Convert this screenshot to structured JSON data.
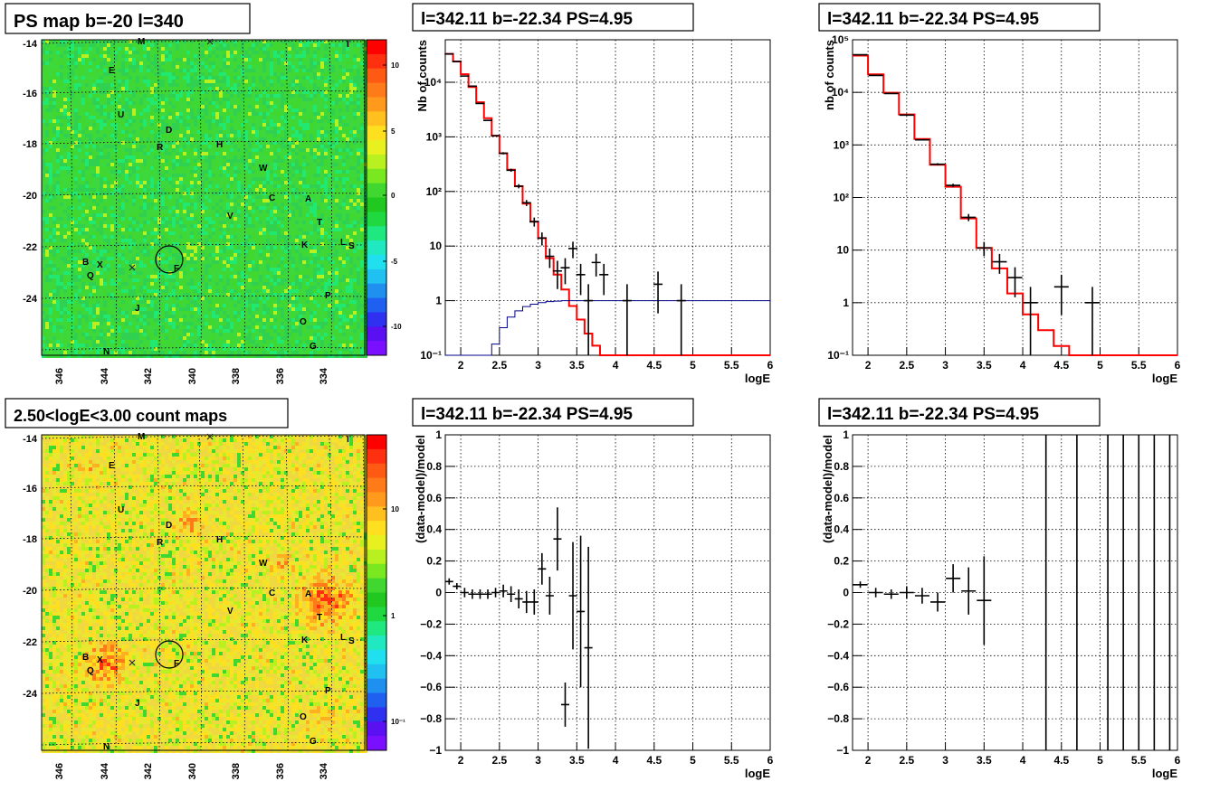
{
  "chart_data": [
    {
      "type": "heatmap",
      "title": "PS map b=-20 l=340",
      "xlabel": "",
      "ylabel": "",
      "xticks": [
        "346",
        "344",
        "342",
        "340",
        "338",
        "336",
        "334"
      ],
      "yticks": [
        "-14",
        "-16",
        "-18",
        "-20",
        "-22",
        "-24"
      ],
      "colorbar": {
        "ticks": [
          "10",
          "5",
          "0",
          "-5",
          "-10"
        ],
        "scale": "linear"
      },
      "sources": [
        "M",
        "I",
        "E",
        "U",
        "D",
        "R",
        "H",
        "W",
        "C",
        "A",
        "V",
        "T",
        "K",
        "L",
        "S",
        "B",
        "X",
        "F",
        "Q",
        "P",
        "J",
        "O",
        "N",
        "G"
      ],
      "region_circle": {
        "l": 342.11,
        "b": -22.34
      },
      "colors": {
        "background": "#3cd83c",
        "hot": "#ff2020",
        "cold": "#7a10ff"
      }
    },
    {
      "type": "line",
      "title": "l=342.11 b=-22.34 PS=4.95",
      "xlabel": "logE",
      "ylabel": "Nb of counts",
      "yscale": "log",
      "xlim": [
        1.8,
        6
      ],
      "ylim": [
        0.1,
        60000
      ],
      "xticks": [
        "2",
        "2.5",
        "3",
        "3.5",
        "4",
        "4.5",
        "5",
        "5.5",
        "6"
      ],
      "yticks": [
        "10⁻¹",
        "1",
        "10",
        "10²",
        "10³",
        "10⁴"
      ],
      "series": [
        {
          "name": "",
          "style": "step",
          "color": "#ff0000",
          "x": [
            1.8,
            1.9,
            2.0,
            2.1,
            2.2,
            2.3,
            2.4,
            2.5,
            2.6,
            2.7,
            2.8,
            2.9,
            3.0,
            3.1,
            3.2,
            3.3,
            3.4,
            3.5,
            3.6,
            3.7,
            3.8,
            3.9,
            4.0,
            4.1,
            4.2,
            4.3,
            4.4,
            4.5,
            4.6,
            4.7,
            4.8,
            4.9,
            5.0,
            5.1,
            5.2,
            5.3,
            5.4,
            5.5,
            5.6,
            5.7,
            5.8,
            5.9
          ],
          "y": [
            33000,
            24000,
            14000,
            8200,
            4300,
            2200,
            1050,
            500,
            250,
            125,
            60,
            28,
            14,
            6,
            3,
            1.6,
            0.8,
            0.45,
            0.25,
            0.15,
            0.1,
            0.1,
            0.1,
            0.1,
            0.1,
            0.1,
            0.1,
            0.1,
            0.1,
            0.1,
            0.1,
            0.1,
            0.1,
            0.1,
            0.1,
            0.1,
            0.1,
            0.1,
            0.1,
            0.1,
            0.1,
            0.1
          ]
        },
        {
          "name": "",
          "style": "step",
          "color": "#00008b",
          "x": [
            1.8,
            2.3,
            2.4,
            2.5,
            2.6,
            2.7,
            2.8,
            2.9,
            3.0,
            3.1,
            3.2,
            3.3,
            3.4,
            3.6,
            4.0,
            5.0,
            6.0
          ],
          "y": [
            0.1,
            0.1,
            0.16,
            0.32,
            0.5,
            0.65,
            0.78,
            0.86,
            0.92,
            0.96,
            0.98,
            1.0,
            1.0,
            1.0,
            1.0,
            1.0,
            1.0
          ]
        },
        {
          "name": "",
          "style": "points",
          "color": "#000000",
          "x": [
            1.85,
            1.95,
            2.05,
            2.15,
            2.25,
            2.35,
            2.45,
            2.55,
            2.65,
            2.75,
            2.85,
            2.95,
            3.05,
            3.15,
            3.25,
            3.35,
            3.45,
            3.55,
            3.65,
            3.75,
            3.85,
            4.15,
            4.55,
            4.85
          ],
          "y": [
            33000,
            24000,
            13000,
            8500,
            4100,
            2000,
            1050,
            500,
            245,
            125,
            62,
            28,
            14,
            6.5,
            3.5,
            4,
            9,
            3,
            1,
            5,
            3,
            1,
            2,
            1
          ]
        }
      ]
    },
    {
      "type": "line",
      "title": "l=342.11 b=-22.34 PS=4.95",
      "xlabel": "logE",
      "ylabel": "nb of counts",
      "yscale": "log",
      "xlim": [
        1.8,
        6
      ],
      "ylim": [
        0.1,
        100000
      ],
      "xticks": [
        "2",
        "2.5",
        "3",
        "3.5",
        "4",
        "4.5",
        "5",
        "5.5",
        "6"
      ],
      "yticks": [
        "10⁻¹",
        "1",
        "10",
        "10²",
        "10³",
        "10⁴",
        "10⁵"
      ],
      "series": [
        {
          "name": "",
          "style": "step",
          "color": "#ff0000",
          "x": [
            1.8,
            2.0,
            2.2,
            2.4,
            2.6,
            2.8,
            3.0,
            3.2,
            3.4,
            3.6,
            3.8,
            4.0,
            4.2,
            4.4,
            4.6,
            4.8,
            5.0,
            5.2,
            5.4,
            5.6,
            5.8
          ],
          "y": [
            50000,
            22000,
            9800,
            3800,
            1300,
            420,
            160,
            40,
            11,
            4.5,
            1.5,
            0.6,
            0.3,
            0.15,
            0.1,
            0.1,
            0.1,
            0.1,
            0.1,
            0.1,
            0.1
          ]
        },
        {
          "name": "",
          "style": "points",
          "color": "#000000",
          "x": [
            1.9,
            2.1,
            2.3,
            2.5,
            2.7,
            2.9,
            3.1,
            3.3,
            3.5,
            3.7,
            3.9,
            4.1,
            4.5,
            4.9
          ],
          "y": [
            52000,
            21000,
            9500,
            3700,
            1250,
            430,
            170,
            42,
            11,
            6,
            3,
            1,
            2,
            1
          ]
        }
      ]
    },
    {
      "type": "heatmap",
      "title": "2.50<logE<3.00 count maps",
      "xlabel": "",
      "ylabel": "",
      "xticks": [
        "346",
        "344",
        "342",
        "340",
        "338",
        "336",
        "334"
      ],
      "yticks": [
        "-14",
        "-16",
        "-18",
        "-20",
        "-22",
        "-24"
      ],
      "colorbar": {
        "ticks": [
          "10",
          "1",
          "10⁻¹"
        ],
        "scale": "log"
      },
      "sources": [
        "M",
        "I",
        "E",
        "U",
        "D",
        "R",
        "H",
        "W",
        "C",
        "A",
        "V",
        "T",
        "K",
        "L",
        "S",
        "B",
        "X",
        "F",
        "Q",
        "P",
        "J",
        "O",
        "N",
        "G"
      ],
      "region_circle": {
        "l": 342.11,
        "b": -22.34
      },
      "colors": {
        "background": "#f0d040",
        "hot": "#ff2020",
        "cold": "#7a10ff"
      }
    },
    {
      "type": "scatter",
      "title": "l=342.11 b=-22.34 PS=4.95",
      "xlabel": "logE",
      "ylabel": "(data-model)/model",
      "xlim": [
        1.8,
        6
      ],
      "ylim": [
        -1,
        1
      ],
      "xticks": [
        "2",
        "2.5",
        "3",
        "3.5",
        "4",
        "4.5",
        "5",
        "5.5",
        "6"
      ],
      "yticks": [
        "−1",
        "−0.8",
        "−0.6",
        "−0.4",
        "−0.2",
        "0",
        "0.2",
        "0.4",
        "0.6",
        "0.8",
        "1"
      ],
      "series": [
        {
          "name": "",
          "x": [
            1.85,
            1.95,
            2.05,
            2.15,
            2.25,
            2.35,
            2.45,
            2.55,
            2.65,
            2.75,
            2.85,
            2.95,
            3.05,
            3.15,
            3.25,
            3.35,
            3.45,
            3.55,
            3.65
          ],
          "y": [
            0.07,
            0.04,
            0.0,
            -0.01,
            -0.01,
            -0.01,
            0.0,
            0.01,
            -0.01,
            -0.04,
            -0.06,
            -0.06,
            0.15,
            -0.02,
            0.34,
            -0.71,
            -0.02,
            -0.12,
            -0.35
          ],
          "err": [
            0.02,
            0.02,
            0.03,
            0.03,
            0.03,
            0.03,
            0.03,
            0.04,
            0.05,
            0.06,
            0.07,
            0.08,
            0.1,
            0.12,
            0.2,
            0.14,
            0.34,
            0.48,
            0.64
          ]
        }
      ]
    },
    {
      "type": "scatter",
      "title": "l=342.11 b=-22.34 PS=4.95",
      "xlabel": "logE",
      "ylabel": "(data-model)/model",
      "xlim": [
        1.8,
        6
      ],
      "ylim": [
        -1,
        1
      ],
      "xticks": [
        "2",
        "2.5",
        "3",
        "3.5",
        "4",
        "4.5",
        "5",
        "5.5",
        "6"
      ],
      "yticks": [
        "−1",
        "−0.8",
        "−0.6",
        "−0.4",
        "−0.2",
        "0",
        "0.2",
        "0.4",
        "0.6",
        "0.8",
        "1"
      ],
      "series": [
        {
          "name": "",
          "x": [
            1.9,
            2.1,
            2.3,
            2.5,
            2.7,
            2.9,
            3.1,
            3.3,
            3.5,
            4.3,
            4.7,
            5.1,
            5.3,
            5.5,
            5.7,
            5.9
          ],
          "y": [
            0.05,
            0.0,
            -0.01,
            0.0,
            -0.02,
            -0.06,
            0.09,
            0.01,
            -0.05,
            0,
            0,
            0,
            0,
            0,
            0,
            0
          ],
          "err": [
            0.02,
            0.03,
            0.03,
            0.04,
            0.05,
            0.06,
            0.09,
            0.15,
            0.28,
            3,
            3,
            3,
            3,
            3,
            3,
            3
          ]
        }
      ]
    }
  ]
}
